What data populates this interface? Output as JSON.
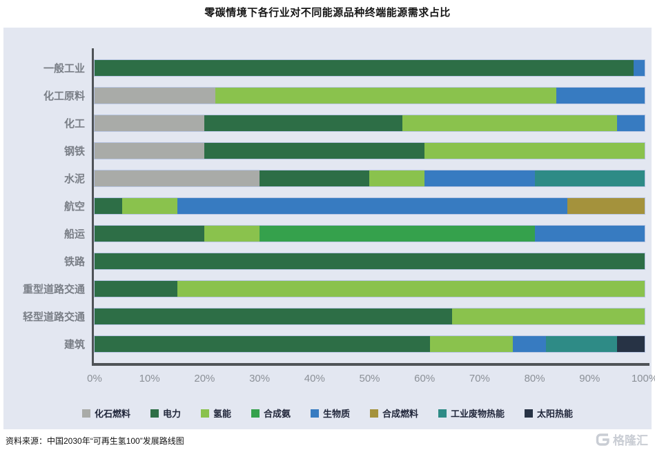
{
  "page": {
    "title": "零碳情境下各行业对不同能源品种终端能源需求占比"
  },
  "chart_data": {
    "type": "bar",
    "subtype": "horizontal-stacked",
    "title": "零碳情境下各行业对不同能源品种终端能源需求占比",
    "unit": "%",
    "categories": [
      "一般工业",
      "化工原料",
      "化工",
      "钢铁",
      "水泥",
      "航空",
      "船运",
      "铁路",
      "重型道路交通",
      "轻型道路交通",
      "建筑"
    ],
    "series": [
      {
        "name": "化石燃料",
        "color": "#a9aba8",
        "values": [
          0,
          22,
          20,
          20,
          30,
          0,
          0,
          0,
          0,
          0,
          0
        ]
      },
      {
        "name": "电力",
        "color": "#2d6e46",
        "values": [
          98,
          0,
          36,
          40,
          20,
          5,
          20,
          100,
          15,
          65,
          61
        ]
      },
      {
        "name": "氢能",
        "color": "#8ac24d",
        "values": [
          0,
          62,
          39,
          40,
          10,
          10,
          10,
          0,
          85,
          35,
          15
        ]
      },
      {
        "name": "合成氨",
        "color": "#35a14c",
        "values": [
          0,
          0,
          0,
          0,
          0,
          0,
          50,
          0,
          0,
          0,
          0
        ]
      },
      {
        "name": "生物质",
        "color": "#377bc1",
        "values": [
          2,
          16,
          5,
          0,
          20,
          71,
          20,
          0,
          0,
          0,
          6
        ]
      },
      {
        "name": "合成燃料",
        "color": "#a4923c",
        "values": [
          0,
          0,
          0,
          0,
          0,
          14,
          0,
          0,
          0,
          0,
          0
        ]
      },
      {
        "name": "工业废物热能",
        "color": "#2e8b86",
        "values": [
          0,
          0,
          0,
          0,
          20,
          0,
          0,
          0,
          0,
          0,
          13
        ]
      },
      {
        "name": "太阳热能",
        "color": "#273345",
        "values": [
          0,
          0,
          0,
          0,
          0,
          0,
          0,
          0,
          0,
          0,
          5
        ]
      }
    ],
    "x_ticks": [
      "0%",
      "10%",
      "20%",
      "30%",
      "40%",
      "50%",
      "60%",
      "70%",
      "80%",
      "90%",
      "100%"
    ],
    "xlim": [
      0,
      100
    ],
    "legend_position": "bottom",
    "grid": false
  },
  "footer": {
    "source": "资料来源：中国2030年“可再生氢100”发展路线图",
    "logo_text": "格隆汇"
  }
}
